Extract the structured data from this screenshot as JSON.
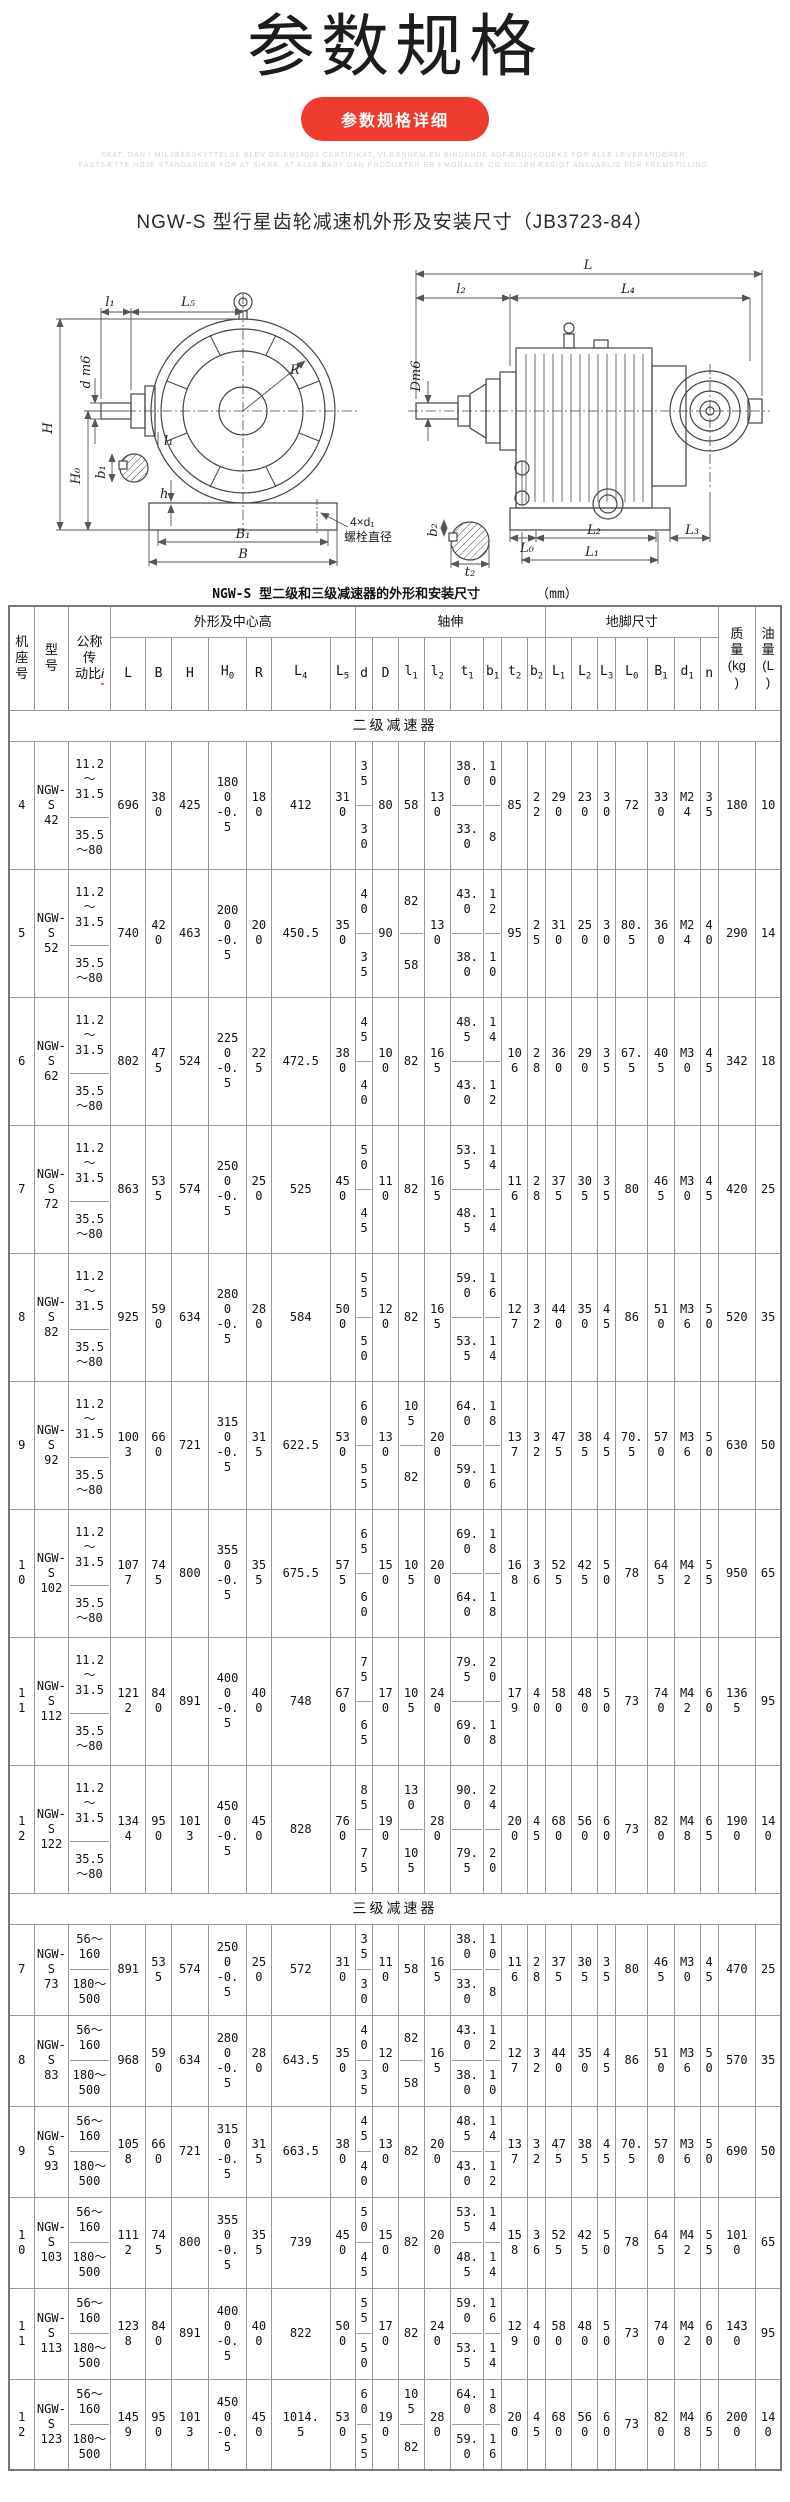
{
  "page": {
    "title": "参数规格",
    "button_label": "参数规格详细",
    "fine_print_line1": "SKAT, DAN I MILJØBESKYTTELSE BLEV DS/EN14001 CERTIFIKAT, VI GENNEM EN BINDENDE ADFÆRDSKODEKS FOR ALLE LEVERANDØRER,",
    "fine_print_line2": "FASTSÆTTE HØJE STANDARDER FOR AT SIKRE, AT ALLE BABY DAN PRODUKTER ER I MORALSK OG MILJØMÆSSIGT ANSVARLIG FOR FREMSTILLING.",
    "subtitle": "NGW-S 型行星齿轮减速机外形及安装尺寸（JB3723-84）",
    "accent_color": "#ef3b2d"
  },
  "drawing": {
    "left": {
      "l1_top": "l₁",
      "L5": "L₅",
      "H": "H",
      "H0": "H₀",
      "dm6": "d m6",
      "b1": "b₁",
      "l1_small": "l₁",
      "h": "h",
      "R": "R",
      "B1": "B₁",
      "B": "B",
      "bolt_note_1": "4×d₁",
      "bolt_note_2": "螺栓直径"
    },
    "right": {
      "L": "L",
      "l2": "l₂",
      "L4": "L₄",
      "Dm6": "Dm6",
      "b2": "b₂",
      "t2": "t₂",
      "L0": "L₀",
      "L2": "L₂",
      "L3": "L₃",
      "L1": "L₁"
    }
  },
  "table": {
    "title": "NGW-S 型二级和三级减速器的外形和安装尺寸",
    "unit": "（mm）",
    "left_headers": {
      "frame": "机\n座\n号",
      "model": "型\n号",
      "ratio": "公称\n传\n动比",
      "ratio_i": "i",
      "mass": "质\n量\n(kg\n)",
      "oil": "油\n量\n(L\n)"
    },
    "groups": [
      {
        "label": "外形及中心高",
        "span": 7
      },
      {
        "label": "轴伸",
        "span": 8
      },
      {
        "label": "地脚尺寸",
        "span": 7
      }
    ],
    "columns": [
      [
        "L",
        ""
      ],
      [
        "B",
        ""
      ],
      [
        "H",
        ""
      ],
      [
        "H",
        "0"
      ],
      [
        "R",
        ""
      ],
      [
        "L",
        "4"
      ],
      [
        "L",
        "5"
      ],
      [
        "d",
        ""
      ],
      [
        "D",
        ""
      ],
      [
        "l",
        "1"
      ],
      [
        "l",
        "2"
      ],
      [
        "t",
        "1"
      ],
      [
        "b",
        "1"
      ],
      [
        "t",
        "2"
      ],
      [
        "b",
        "2"
      ],
      [
        "L",
        "1"
      ],
      [
        "L",
        "2"
      ],
      [
        "L",
        "3"
      ],
      [
        "L",
        "0"
      ],
      [
        "B",
        "1"
      ],
      [
        "d",
        "1"
      ],
      [
        "n",
        ""
      ]
    ],
    "sections": [
      {
        "label": "二级减速器",
        "cls": "two",
        "rows": [
          {
            "no": "4",
            "model": "NGW-\nS\n42",
            "ratio": [
              "11.2\n～\n31.5",
              "35.5\n～80"
            ],
            "cells": [
              "696",
              "38\n0",
              "425",
              "180\n0\n-0.\n5",
              "18\n0",
              "412",
              "31\n0",
              [
                "3\n5",
                "3\n0"
              ],
              "80",
              "58",
              "13\n0",
              [
                "38.\n0",
                "33.\n0"
              ],
              [
                "1\n0",
                "8"
              ],
              "85",
              "2\n2",
              "29\n0",
              "23\n0",
              "3\n0",
              "72",
              "33\n0",
              "M2\n4",
              "3\n5"
            ],
            "mass": "180",
            "oil": "10"
          },
          {
            "no": "5",
            "model": "NGW-\nS\n52",
            "ratio": [
              "11.2\n～\n31.5",
              "35.5\n～80"
            ],
            "cells": [
              "740",
              "42\n0",
              "463",
              "200\n0\n-0.\n5",
              "20\n0",
              "450.5",
              "35\n0",
              [
                "4\n0",
                "3\n5"
              ],
              "90",
              [
                "82",
                "58"
              ],
              "13\n0",
              [
                "43.\n0",
                "38.\n0"
              ],
              [
                "1\n2",
                "1\n0"
              ],
              "95",
              "2\n5",
              "31\n0",
              "25\n0",
              "3\n0",
              "80.\n5",
              "36\n0",
              "M2\n4",
              "4\n0"
            ],
            "mass": "290",
            "oil": "14"
          },
          {
            "no": "6",
            "model": "NGW-\nS\n62",
            "ratio": [
              "11.2\n～\n31.5",
              "35.5\n～80"
            ],
            "cells": [
              "802",
              "47\n5",
              "524",
              "225\n0\n-0.\n5",
              "22\n5",
              "472.5",
              "38\n0",
              [
                "4\n5",
                "4\n0"
              ],
              "10\n0",
              "82",
              "16\n5",
              [
                "48.\n5",
                "43.\n0"
              ],
              [
                "1\n4",
                "1\n2"
              ],
              "10\n6",
              "2\n8",
              "36\n0",
              "29\n0",
              "3\n5",
              "67.\n5",
              "40\n5",
              "M3\n0",
              "4\n5"
            ],
            "mass": "342",
            "oil": "18"
          },
          {
            "no": "7",
            "model": "NGW-\nS\n72",
            "ratio": [
              "11.2\n～\n31.5",
              "35.5\n～80"
            ],
            "cells": [
              "863",
              "53\n5",
              "574",
              "250\n0\n-0.\n5",
              "25\n0",
              "525",
              "45\n0",
              [
                "5\n0",
                "4\n5"
              ],
              "11\n0",
              "82",
              "16\n5",
              [
                "53.\n5",
                "48.\n5"
              ],
              [
                "1\n4",
                "1\n4"
              ],
              "11\n6",
              "2\n8",
              "37\n5",
              "30\n5",
              "3\n5",
              "80",
              "46\n5",
              "M3\n0",
              "4\n5"
            ],
            "mass": "420",
            "oil": "25"
          },
          {
            "no": "8",
            "model": "NGW-\nS\n82",
            "ratio": [
              "11.2\n～\n31.5",
              "35.5\n～80"
            ],
            "cells": [
              "925",
              "59\n0",
              "634",
              "280\n0\n-0.\n5",
              "28\n0",
              "584",
              "50\n0",
              [
                "5\n5",
                "5\n0"
              ],
              "12\n0",
              "82",
              "16\n5",
              [
                "59.\n0",
                "53.\n5"
              ],
              [
                "1\n6",
                "1\n4"
              ],
              "12\n7",
              "3\n2",
              "44\n0",
              "35\n0",
              "4\n5",
              "86",
              "51\n0",
              "M3\n6",
              "5\n0"
            ],
            "mass": "520",
            "oil": "35"
          },
          {
            "no": "9",
            "model": "NGW-\nS\n92",
            "ratio": [
              "11.2\n～\n31.5",
              "35.5\n～80"
            ],
            "cells": [
              "100\n3",
              "66\n0",
              "721",
              "315\n0\n-0.\n5",
              "31\n5",
              "622.5",
              "53\n0",
              [
                "6\n0",
                "5\n5"
              ],
              "13\n0",
              [
                "10\n5",
                "82"
              ],
              "20\n0",
              [
                "64.\n0",
                "59.\n0"
              ],
              [
                "1\n8",
                "1\n6"
              ],
              "13\n7",
              "3\n2",
              "47\n5",
              "38\n5",
              "4\n5",
              "70.\n5",
              "57\n0",
              "M3\n6",
              "5\n0"
            ],
            "mass": "630",
            "oil": "50"
          },
          {
            "no": "1\n0",
            "model": "NGW-\nS\n102",
            "ratio": [
              "11.2\n～\n31.5",
              "35.5\n～80"
            ],
            "cells": [
              "107\n7",
              "74\n5",
              "800",
              "355\n0\n-0.\n5",
              "35\n5",
              "675.5",
              "57\n5",
              [
                "6\n5",
                "6\n0"
              ],
              "15\n0",
              "10\n5",
              "20\n0",
              [
                "69.\n0",
                "64.\n0"
              ],
              [
                "1\n8",
                "1\n8"
              ],
              "16\n8",
              "3\n6",
              "52\n5",
              "42\n5",
              "5\n0",
              "78",
              "64\n5",
              "M4\n2",
              "5\n5"
            ],
            "mass": "950",
            "oil": "65"
          },
          {
            "no": "1\n1",
            "model": "NGW-\nS\n112",
            "ratio": [
              "11.2\n～\n31.5",
              "35.5\n～80"
            ],
            "cells": [
              "121\n2",
              "84\n0",
              "891",
              "400\n0\n-0.\n5",
              "40\n0",
              "748",
              "67\n0",
              [
                "7\n5",
                "6\n5"
              ],
              "17\n0",
              "10\n5",
              "24\n0",
              [
                "79.\n5",
                "69.\n0"
              ],
              [
                "2\n0",
                "1\n8"
              ],
              "17\n9",
              "4\n0",
              "58\n0",
              "48\n0",
              "5\n0",
              "73",
              "74\n0",
              "M4\n2",
              "6\n0"
            ],
            "mass": "136\n5",
            "oil": "95"
          },
          {
            "no": "1\n2",
            "model": "NGW-\nS\n122",
            "ratio": [
              "11.2\n～\n31.5",
              "35.5\n～80"
            ],
            "cells": [
              "134\n4",
              "95\n0",
              "101\n3",
              "450\n0\n-0.\n5",
              "45\n0",
              "828",
              "76\n0",
              [
                "8\n5",
                "7\n5"
              ],
              "19\n0",
              [
                "13\n0",
                "10\n5"
              ],
              "28\n0",
              [
                "90.\n0",
                "79.\n5"
              ],
              [
                "2\n4",
                "2\n0"
              ],
              "20\n0",
              "4\n5",
              "68\n0",
              "56\n0",
              "6\n0",
              "73",
              "82\n0",
              "M4\n8",
              "6\n5"
            ],
            "mass": "190\n0",
            "oil": "14\n0"
          }
        ]
      },
      {
        "label": "三级减速器",
        "cls": "three",
        "rows": [
          {
            "no": "7",
            "model": "NGW-\nS\n73",
            "ratio": [
              "56～\n160",
              "180～\n500"
            ],
            "cells": [
              "891",
              "53\n5",
              "574",
              "250\n0\n-0.\n5",
              "25\n0",
              "572",
              "31\n0",
              [
                "3\n5",
                "3\n0"
              ],
              "11\n0",
              "58",
              "16\n5",
              [
                "38.\n0",
                "33.\n0"
              ],
              [
                "1\n0",
                "8"
              ],
              "11\n6",
              "2\n8",
              "37\n5",
              "30\n5",
              "3\n5",
              "80",
              "46\n5",
              "M3\n0",
              "4\n5"
            ],
            "mass": "470",
            "oil": "25"
          },
          {
            "no": "8",
            "model": "NGW-\nS\n83",
            "ratio": [
              "56～\n160",
              "180～\n500"
            ],
            "cells": [
              "968",
              "59\n0",
              "634",
              "280\n0\n-0.\n5",
              "28\n0",
              "643.5",
              "35\n0",
              [
                "4\n0",
                "3\n5"
              ],
              "12\n0",
              [
                "82",
                "58"
              ],
              "16\n5",
              [
                "43.\n0",
                "38.\n0"
              ],
              [
                "1\n2",
                "1\n0"
              ],
              "12\n7",
              "3\n2",
              "44\n0",
              "35\n0",
              "4\n5",
              "86",
              "51\n0",
              "M3\n6",
              "5\n0"
            ],
            "mass": "570",
            "oil": "35"
          },
          {
            "no": "9",
            "model": "NGW-\nS\n93",
            "ratio": [
              "56～\n160",
              "180～\n500"
            ],
            "cells": [
              "105\n8",
              "66\n0",
              "721",
              "315\n0\n-0.\n5",
              "31\n5",
              "663.5",
              "38\n0",
              [
                "4\n5",
                "4\n0"
              ],
              "13\n0",
              "82",
              "20\n0",
              [
                "48.\n5",
                "43.\n0"
              ],
              [
                "1\n4",
                "1\n2"
              ],
              "13\n7",
              "3\n2",
              "47\n5",
              "38\n5",
              "4\n5",
              "70.\n5",
              "57\n0",
              "M3\n6",
              "5\n0"
            ],
            "mass": "690",
            "oil": "50"
          },
          {
            "no": "1\n0",
            "model": "NGW-\nS\n103",
            "ratio": [
              "56～\n160",
              "180～\n500"
            ],
            "cells": [
              "111\n2",
              "74\n5",
              "800",
              "355\n0\n-0.\n5",
              "35\n5",
              "739",
              "45\n0",
              [
                "5\n0",
                "4\n5"
              ],
              "15\n0",
              "82",
              "20\n0",
              [
                "53.\n5",
                "48.\n5"
              ],
              [
                "1\n4",
                "1\n4"
              ],
              "15\n8",
              "3\n6",
              "52\n5",
              "42\n5",
              "5\n0",
              "78",
              "64\n5",
              "M4\n2",
              "5\n5"
            ],
            "mass": "101\n0",
            "oil": "65"
          },
          {
            "no": "1\n1",
            "model": "NGW-\nS\n113",
            "ratio": [
              "56～\n160",
              "180～\n500"
            ],
            "cells": [
              "123\n8",
              "84\n0",
              "891",
              "400\n0\n-0.\n5",
              "40\n0",
              "822",
              "50\n0",
              [
                "5\n5",
                "5\n0"
              ],
              "17\n0",
              "82",
              "24\n0",
              [
                "59.\n0",
                "53.\n5"
              ],
              [
                "1\n6",
                "1\n4"
              ],
              "12\n9",
              "4\n0",
              "58\n0",
              "48\n0",
              "5\n0",
              "73",
              "74\n0",
              "M4\n2",
              "6\n0"
            ],
            "mass": "143\n0",
            "oil": "95"
          },
          {
            "no": "1\n2",
            "model": "NGW-\nS\n123",
            "ratio": [
              "56～\n160",
              "180～\n500"
            ],
            "cells": [
              "145\n9",
              "95\n0",
              "101\n3",
              "450\n0\n-0.\n5",
              "45\n0",
              "1014.\n5",
              "53\n0",
              [
                "6\n0",
                "5\n5"
              ],
              "19\n0",
              [
                "10\n5",
                "82"
              ],
              "28\n0",
              [
                "64.\n0",
                "59.\n0"
              ],
              [
                "1\n8",
                "1\n6"
              ],
              "20\n0",
              "4\n5",
              "68\n0",
              "56\n0",
              "6\n0",
              "73",
              "82\n0",
              "M4\n8",
              "6\n5"
            ],
            "mass": "200\n0",
            "oil": "14\n0"
          }
        ]
      }
    ]
  }
}
